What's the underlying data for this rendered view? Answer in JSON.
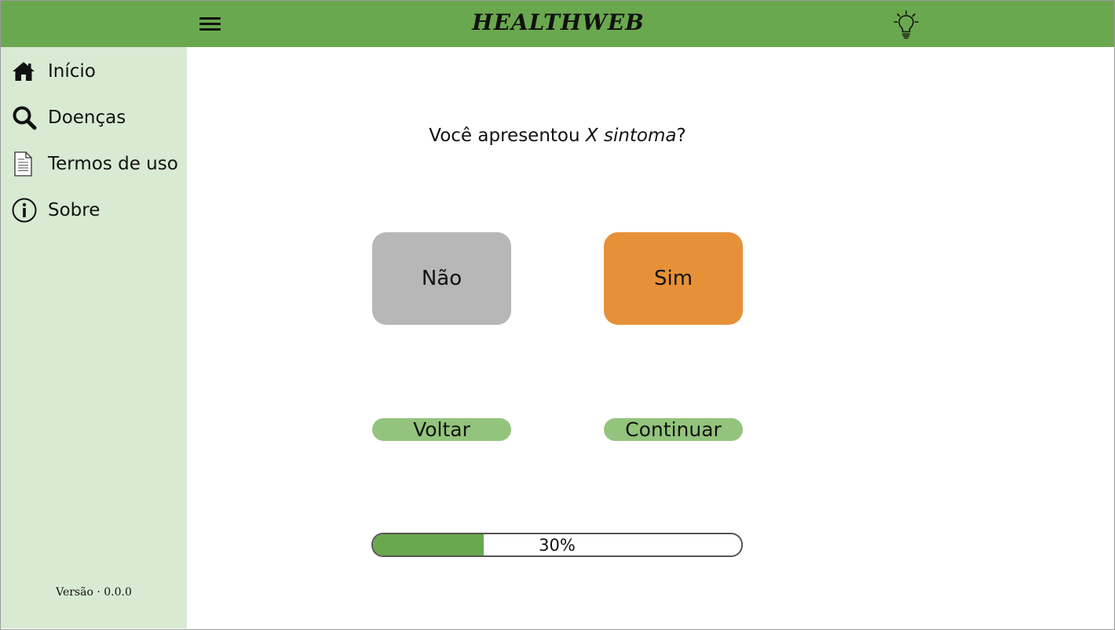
{
  "header": {
    "brand": "HEALTHWEB",
    "menu_icon": "hamburger-menu-icon",
    "theme_icon": "lightbulb-icon",
    "bar_color": "#6aa84f"
  },
  "sidebar": {
    "items": [
      {
        "label": "Início",
        "icon": "home-icon"
      },
      {
        "label": "Doenças",
        "icon": "search-icon"
      },
      {
        "label": "Termos de uso",
        "icon": "document-icon"
      },
      {
        "label": "Sobre",
        "icon": "info-icon"
      }
    ],
    "version": "Versão · 0.0.0",
    "background": "#d9ead3"
  },
  "quiz": {
    "question_prefix": "Você apresentou ",
    "question_emphasis": "X sintoma",
    "question_suffix": "?",
    "no_label": "Não",
    "yes_label": "Sim",
    "back_label": "Voltar",
    "continue_label": "Continuar",
    "progress_percent": 30,
    "progress_label": "30%",
    "colors": {
      "no": "#b7b7b7",
      "yes": "#e69138",
      "nav": "#93c47d",
      "progress": "#6aa84f"
    }
  }
}
